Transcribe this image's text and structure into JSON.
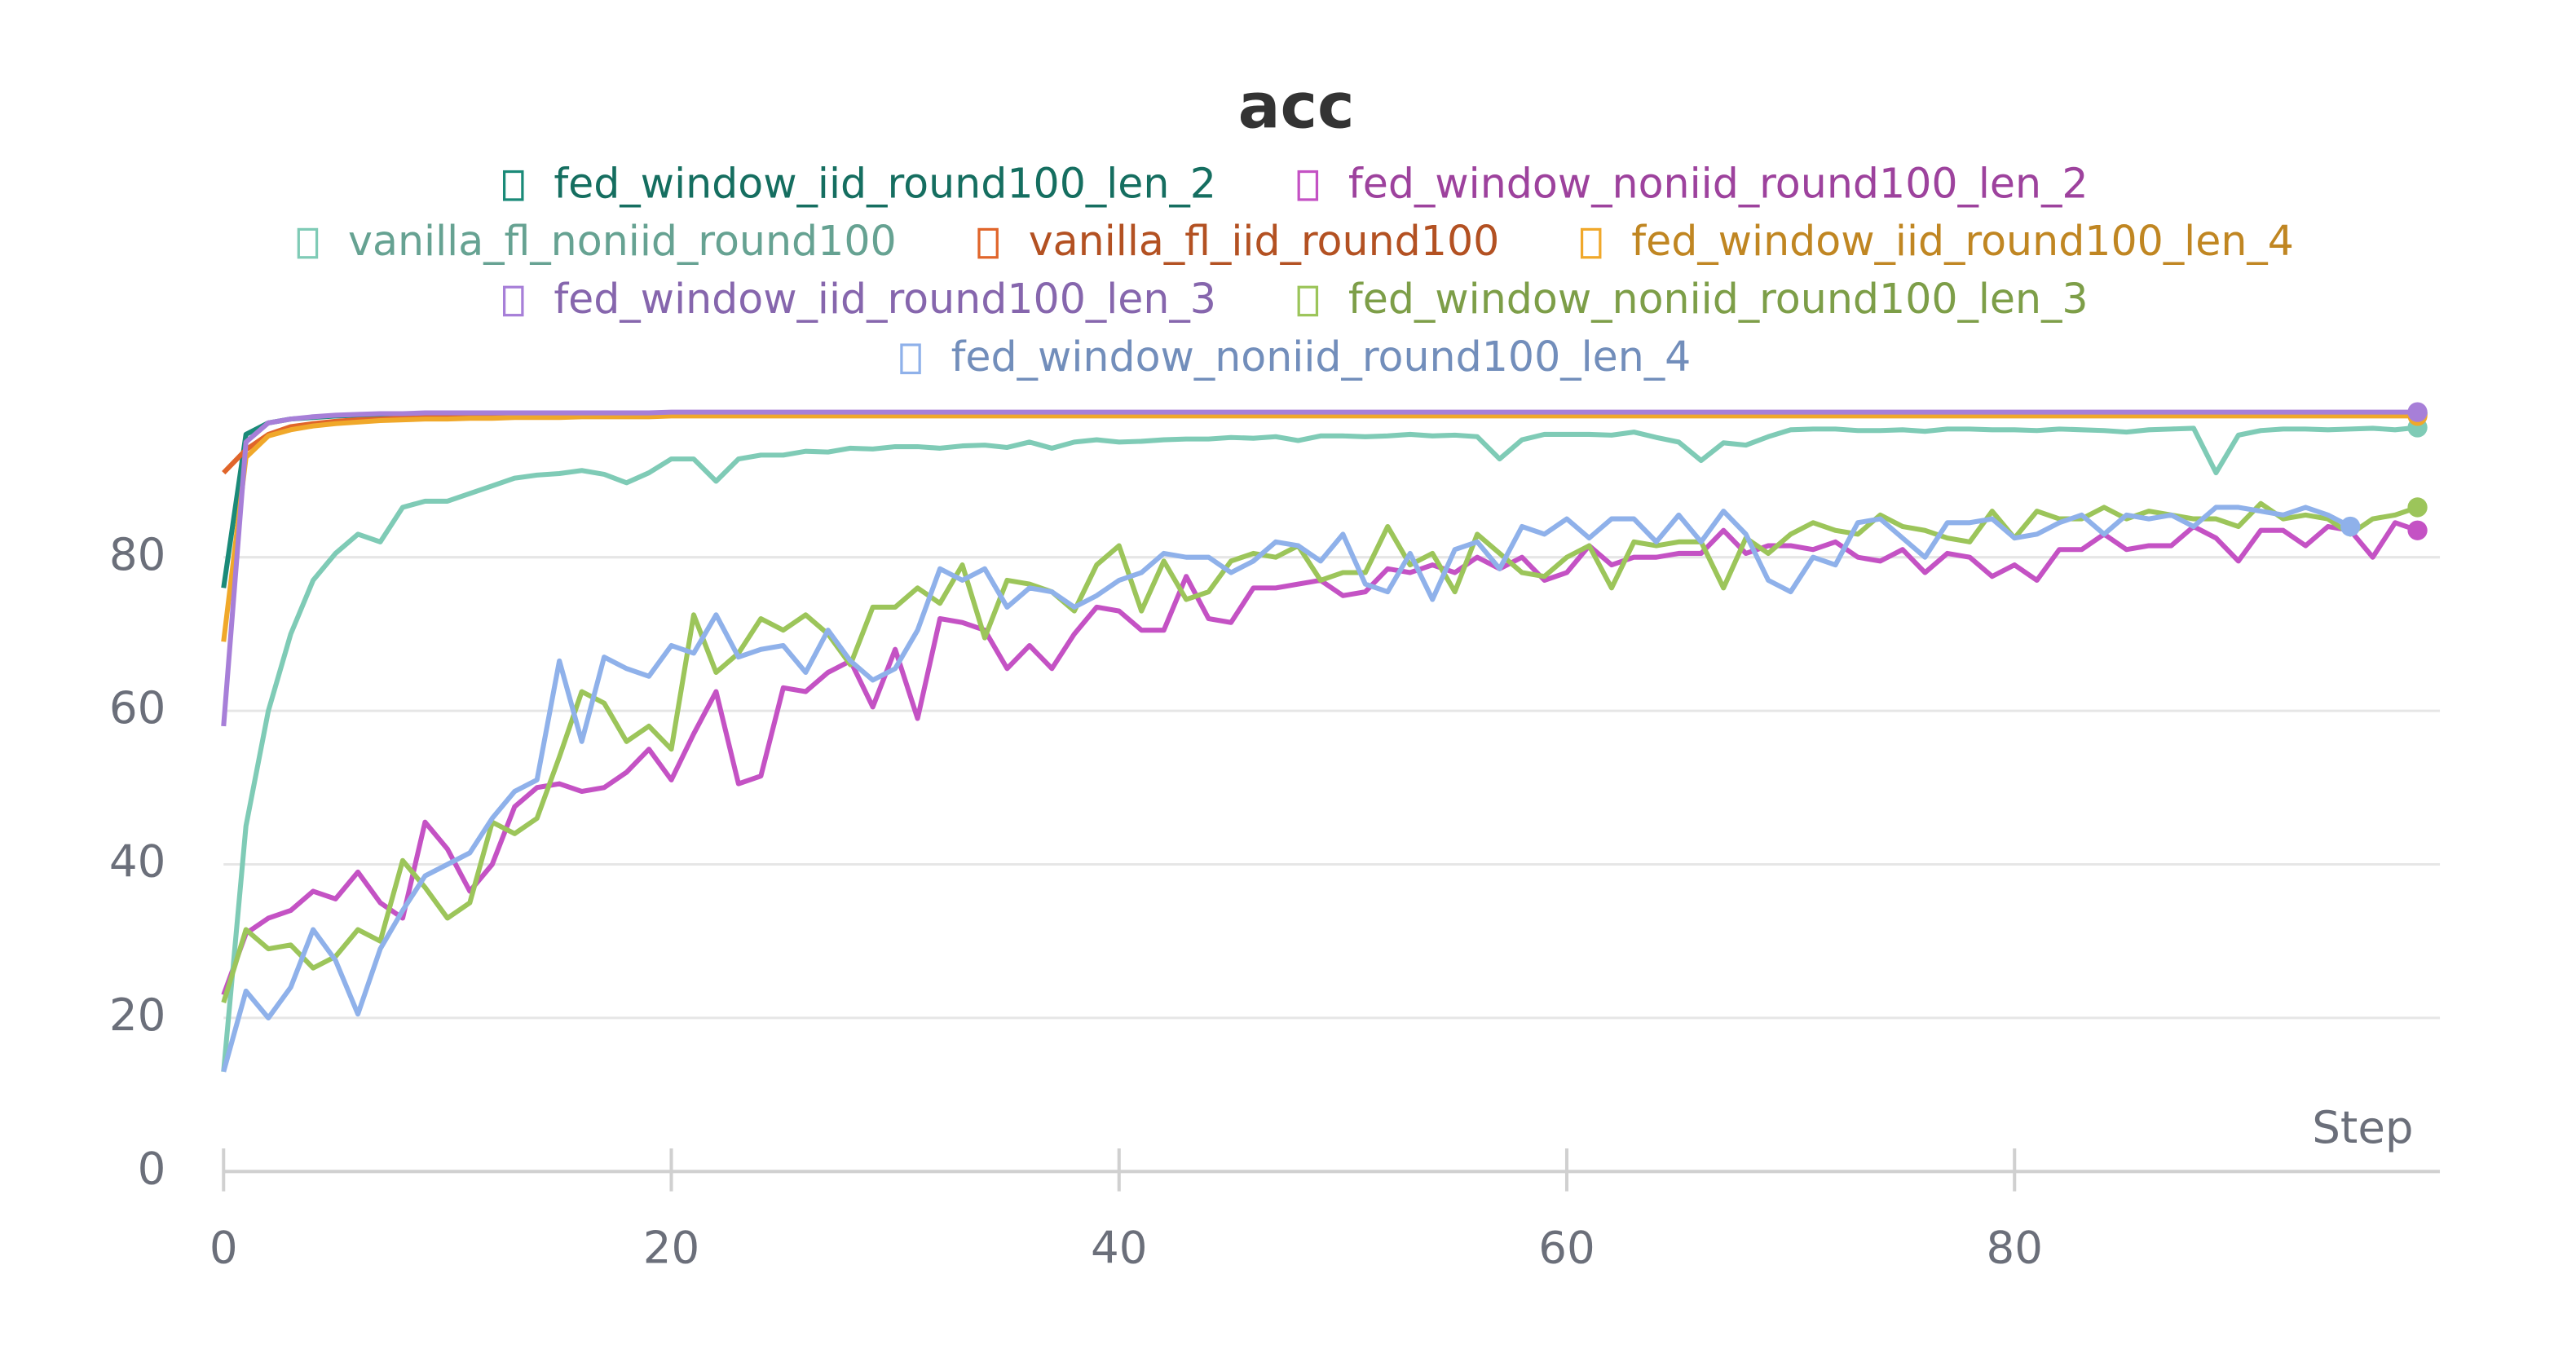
{
  "chart_data": {
    "type": "line",
    "title": "acc",
    "x_label": "Step",
    "x": [
      0,
      1,
      2,
      3,
      4,
      5,
      6,
      7,
      8,
      9,
      10,
      11,
      12,
      13,
      14,
      15,
      16,
      17,
      18,
      19,
      20,
      21,
      22,
      23,
      24,
      25,
      26,
      27,
      28,
      29,
      30,
      31,
      32,
      33,
      34,
      35,
      36,
      37,
      38,
      39,
      40,
      41,
      42,
      43,
      44,
      45,
      46,
      47,
      48,
      49,
      50,
      51,
      52,
      53,
      54,
      55,
      56,
      57,
      58,
      59,
      60,
      61,
      62,
      63,
      64,
      65,
      66,
      67,
      68,
      69,
      70,
      71,
      72,
      73,
      74,
      75,
      76,
      77,
      78,
      79,
      80,
      81,
      82,
      83,
      84,
      85,
      86,
      87,
      88,
      89,
      90,
      91,
      92,
      93,
      94,
      95,
      96,
      97,
      98
    ],
    "xlim": [
      0,
      99
    ],
    "xticks": [
      0,
      20,
      40,
      60,
      80
    ],
    "ylim": [
      0,
      101
    ],
    "yticks": [
      0,
      20,
      40,
      60,
      80
    ],
    "grid": true,
    "series": [
      {
        "name": "fed_window_iid_round100_len_2",
        "color": "#1a8a78",
        "values": [
          76,
          96,
          97.5,
          98,
          98.2,
          98.4,
          98.5,
          98.5,
          98.6,
          98.6,
          98.6,
          98.7,
          98.7,
          98.7,
          98.7,
          98.7,
          98.7,
          98.7,
          98.7,
          98.7,
          98.8,
          98.8,
          98.8,
          98.8,
          98.8,
          98.8,
          98.8,
          98.8,
          98.8,
          98.8,
          98.8,
          98.8,
          98.8,
          98.8,
          98.8,
          98.8,
          98.8,
          98.8,
          98.8,
          98.8,
          98.8,
          98.8,
          98.8,
          98.8,
          98.8,
          98.8,
          98.8,
          98.8,
          98.8,
          98.8,
          98.8,
          98.8,
          98.8,
          98.8,
          98.8,
          98.8,
          98.8,
          98.8,
          98.8,
          98.8,
          98.8,
          98.8,
          98.8,
          98.8,
          98.8,
          98.8,
          98.8,
          98.8,
          98.8,
          98.8,
          98.8,
          98.8,
          98.8,
          98.8,
          98.8,
          98.8,
          98.8,
          98.8,
          98.8,
          98.8,
          98.8,
          98.8,
          98.8,
          98.8,
          98.8,
          98.8,
          98.8,
          98.8,
          98.8,
          98.8,
          98.8,
          98.8,
          98.8,
          98.8,
          98.8,
          98.8,
          98.8,
          98.8,
          98.8
        ]
      },
      {
        "name": "fed_window_noniid_round100_len_2",
        "color": "#c452c4",
        "values": [
          23,
          31,
          33,
          34,
          36.5,
          35.5,
          39,
          35,
          33,
          45.5,
          42,
          36.5,
          40,
          47.5,
          50,
          50.5,
          49.5,
          50,
          52,
          55,
          51,
          57,
          62.5,
          50.5,
          51.5,
          63,
          62.5,
          65,
          66.5,
          60.5,
          68,
          59,
          72,
          71.5,
          70.5,
          65.5,
          68.5,
          65.5,
          70,
          73.5,
          73,
          70.5,
          70.5,
          77.5,
          72,
          71.5,
          76,
          76,
          76.5,
          77,
          75,
          75.5,
          78.5,
          78,
          79,
          78,
          80,
          78.5,
          80,
          77,
          78,
          81.5,
          79,
          80,
          80,
          80.5,
          80.5,
          83.5,
          80.5,
          81.5,
          81.5,
          81,
          82,
          80,
          79.5,
          81,
          78,
          80.5,
          80,
          77.5,
          79,
          77,
          81,
          81,
          83,
          81,
          81.5,
          81.5,
          84,
          82.5,
          79.5,
          83.5,
          83.5,
          81.5,
          84,
          83.5,
          80,
          84.5,
          83.5
        ]
      },
      {
        "name": "vanilla_fl_noniid_round100",
        "color": "#7fcbb6",
        "values": [
          13,
          45,
          60,
          70,
          77,
          80.5,
          83,
          82,
          86.5,
          87.3,
          87.3,
          88.3,
          89.3,
          90.3,
          90.7,
          90.9,
          91.3,
          90.8,
          89.7,
          91,
          92.8,
          92.8,
          89.9,
          92.8,
          93.3,
          93.3,
          93.8,
          93.7,
          94.2,
          94.1,
          94.4,
          94.4,
          94.2,
          94.5,
          94.6,
          94.3,
          95,
          94.2,
          95,
          95.3,
          95,
          95.1,
          95.3,
          95.4,
          95.4,
          95.6,
          95.5,
          95.7,
          95.2,
          95.8,
          95.8,
          95.7,
          95.8,
          96,
          95.8,
          95.9,
          95.7,
          92.8,
          95.3,
          96,
          96,
          96,
          95.9,
          96.3,
          95.6,
          95,
          92.6,
          94.9,
          94.6,
          95.7,
          96.6,
          96.7,
          96.7,
          96.5,
          96.5,
          96.6,
          96.4,
          96.7,
          96.7,
          96.6,
          96.6,
          96.5,
          96.7,
          96.6,
          96.5,
          96.3,
          96.6,
          96.7,
          96.8,
          91,
          95.9,
          96.5,
          96.7,
          96.7,
          96.6,
          96.7,
          96.8,
          96.6,
          96.9
        ]
      },
      {
        "name": "vanilla_fl_iid_round100",
        "color": "#e0652a",
        "values": [
          91,
          94,
          96,
          97,
          97.4,
          97.7,
          97.9,
          98,
          98.1,
          98.2,
          98.2,
          98.3,
          98.3,
          98.4,
          98.4,
          98.4,
          98.5,
          98.5,
          98.5,
          98.5,
          98.6,
          98.6,
          98.6,
          98.6,
          98.6,
          98.6,
          98.6,
          98.6,
          98.6,
          98.6,
          98.6,
          98.6,
          98.6,
          98.6,
          98.6,
          98.6,
          98.6,
          98.6,
          98.6,
          98.6,
          98.6,
          98.6,
          98.6,
          98.6,
          98.6,
          98.6,
          98.6,
          98.6,
          98.6,
          98.6,
          98.6,
          98.6,
          98.6,
          98.6,
          98.6,
          98.6,
          98.6,
          98.6,
          98.6,
          98.6,
          98.6,
          98.6,
          98.6,
          98.6,
          98.6,
          98.6,
          98.6,
          98.6,
          98.6,
          98.6,
          98.6,
          98.6,
          98.6,
          98.6,
          98.6,
          98.6,
          98.6,
          98.6,
          98.6,
          98.6,
          98.6,
          98.6,
          98.6,
          98.6,
          98.6,
          98.6,
          98.6,
          98.6,
          98.6,
          98.6,
          98.6,
          98.6,
          98.6,
          98.6,
          98.6,
          98.6,
          98.6,
          98.6,
          98.6
        ]
      },
      {
        "name": "fed_window_iid_round100_len_4",
        "color": "#f0a82a",
        "values": [
          69,
          93,
          95.8,
          96.6,
          97.1,
          97.4,
          97.6,
          97.8,
          97.9,
          98,
          98,
          98.1,
          98.1,
          98.2,
          98.2,
          98.2,
          98.3,
          98.3,
          98.3,
          98.3,
          98.4,
          98.4,
          98.4,
          98.4,
          98.4,
          98.4,
          98.4,
          98.4,
          98.4,
          98.4,
          98.4,
          98.4,
          98.4,
          98.4,
          98.4,
          98.4,
          98.4,
          98.4,
          98.4,
          98.4,
          98.4,
          98.4,
          98.4,
          98.4,
          98.4,
          98.4,
          98.4,
          98.4,
          98.4,
          98.4,
          98.4,
          98.4,
          98.4,
          98.4,
          98.4,
          98.4,
          98.4,
          98.4,
          98.4,
          98.4,
          98.4,
          98.4,
          98.4,
          98.4,
          98.4,
          98.4,
          98.4,
          98.4,
          98.4,
          98.4,
          98.4,
          98.4,
          98.4,
          98.4,
          98.4,
          98.4,
          98.4,
          98.4,
          98.4,
          98.4,
          98.4,
          98.4,
          98.4,
          98.4,
          98.4,
          98.4,
          98.4,
          98.4,
          98.4,
          98.4,
          98.4,
          98.4,
          98.4,
          98.4,
          98.4,
          98.4,
          98.4,
          98.4,
          98.4
        ]
      },
      {
        "name": "fed_window_iid_round100_len_3",
        "color": "#a77fd8",
        "values": [
          58,
          95,
          97.5,
          98,
          98.3,
          98.5,
          98.6,
          98.7,
          98.7,
          98.8,
          98.8,
          98.8,
          98.8,
          98.8,
          98.8,
          98.8,
          98.8,
          98.8,
          98.8,
          98.8,
          98.9,
          98.9,
          98.9,
          98.9,
          98.9,
          98.9,
          98.9,
          98.9,
          98.9,
          98.9,
          98.9,
          98.9,
          98.9,
          98.9,
          98.9,
          98.9,
          98.9,
          98.9,
          98.9,
          98.9,
          98.9,
          98.9,
          98.9,
          98.9,
          98.9,
          98.9,
          98.9,
          98.9,
          98.9,
          98.9,
          98.9,
          98.9,
          98.9,
          98.9,
          98.9,
          98.9,
          98.9,
          98.9,
          98.9,
          98.9,
          98.9,
          98.9,
          98.9,
          98.9,
          98.9,
          98.9,
          98.9,
          98.9,
          98.9,
          98.9,
          98.9,
          98.9,
          98.9,
          98.9,
          98.9,
          98.9,
          98.9,
          98.9,
          98.9,
          98.9,
          98.9,
          98.9,
          98.9,
          98.9,
          98.9,
          98.9,
          98.9,
          98.9,
          98.9,
          98.9,
          98.9,
          98.9,
          98.9,
          98.9,
          98.9,
          98.9,
          98.9,
          98.9,
          98.9
        ]
      },
      {
        "name": "fed_window_noniid_round100_len_3",
        "color": "#9cc55a",
        "values": [
          22,
          31.5,
          29,
          29.5,
          26.5,
          28,
          31.5,
          30,
          40.5,
          37,
          33,
          35,
          45.5,
          44,
          46,
          54,
          62.5,
          61,
          56,
          58,
          55,
          72.5,
          65,
          67.5,
          72,
          70.5,
          72.5,
          70,
          66,
          73.5,
          73.5,
          76,
          74,
          79,
          69.5,
          77,
          76.5,
          75.5,
          73,
          79,
          81.5,
          73,
          79.5,
          74.5,
          75.5,
          79.5,
          80.5,
          80,
          81.5,
          77,
          78,
          78,
          84,
          79,
          80.5,
          75.5,
          83,
          80.5,
          78,
          77.5,
          80,
          81.5,
          76,
          82,
          81.5,
          82,
          82,
          76,
          82.5,
          80.5,
          83,
          84.5,
          83.5,
          83,
          85.5,
          84,
          83.5,
          82.5,
          82,
          86,
          82.5,
          86,
          85,
          85,
          86.5,
          85,
          86,
          85.5,
          85,
          85,
          84,
          87,
          85,
          85.5,
          85,
          83,
          85,
          85.5,
          86.5
        ]
      },
      {
        "name": "fed_window_noniid_round100_len_4",
        "color": "#8fb1ea",
        "values": [
          13,
          23.5,
          20,
          24,
          31.5,
          27.5,
          20.5,
          29,
          34,
          38.5,
          40,
          41.5,
          46,
          49.5,
          51,
          66.5,
          56,
          67,
          65.5,
          64.5,
          68.5,
          67.5,
          72.5,
          67,
          68,
          68.5,
          65,
          70.5,
          66.5,
          64,
          65.5,
          70.5,
          78.5,
          77,
          78.5,
          73.5,
          76,
          75.5,
          73.5,
          75,
          77,
          78,
          80.5,
          80,
          80,
          78,
          79.5,
          82,
          81.5,
          79.5,
          83,
          76.5,
          75.5,
          80.5,
          74.5,
          81,
          82,
          78.5,
          84,
          83,
          85,
          82.5,
          85,
          85,
          82,
          85.5,
          82,
          86,
          83,
          77,
          75.5,
          80,
          79,
          84.5,
          85,
          82.5,
          80,
          84.5,
          84.5,
          85,
          82.5,
          83,
          84.5,
          85.5,
          83,
          85.5,
          85,
          85.5,
          84,
          86.5,
          86.5,
          86,
          85.5,
          86.5,
          85.5,
          84,
          null,
          null,
          null
        ]
      }
    ]
  }
}
